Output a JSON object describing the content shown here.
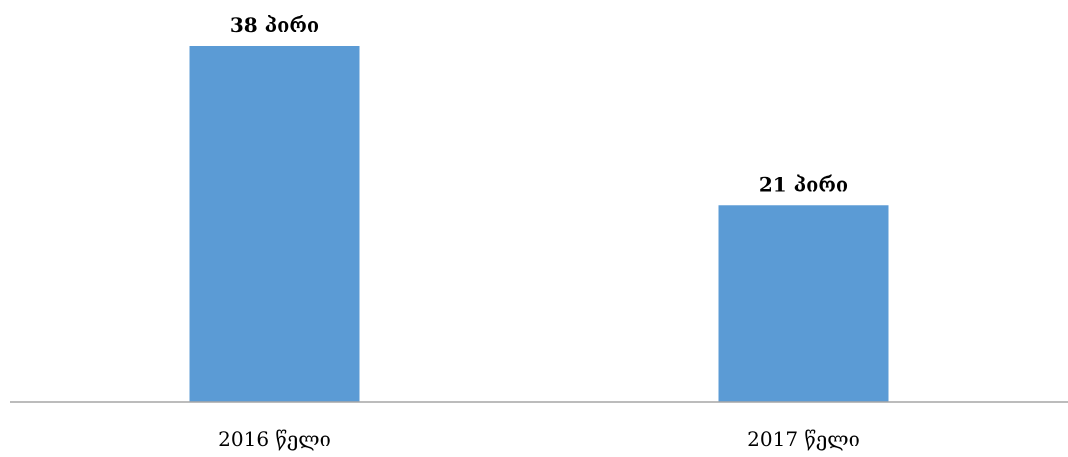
{
  "chart_data": {
    "type": "bar",
    "categories": [
      "2016 წელი",
      "2017 წელი"
    ],
    "values": [
      38,
      21
    ],
    "data_labels": [
      "38 პირი",
      "21 პირი"
    ],
    "title": "",
    "xlabel": "",
    "ylabel": "",
    "ylim": [
      0,
      38
    ],
    "grid": false,
    "legend": "none",
    "colors": {
      "bar": "#5B9BD5",
      "axis": "#A6A6A6",
      "text": "#000000"
    }
  }
}
